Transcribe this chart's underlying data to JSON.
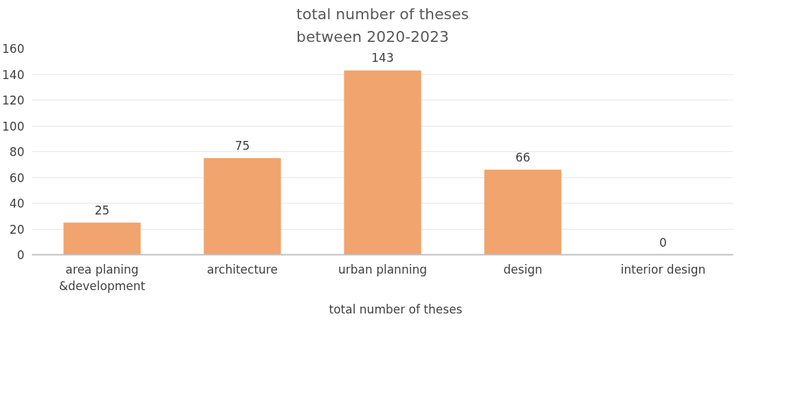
{
  "chart_data": {
    "type": "bar",
    "title": "total number of theses\nbetween 2020-2023",
    "categories": [
      "area planing &development",
      "architecture",
      "urban planning",
      "design",
      "interior design"
    ],
    "series": [
      {
        "name": "total number of theses",
        "color": "#f1a46d",
        "values": [
          25,
          75,
          143,
          66,
          0
        ]
      }
    ],
    "ylim": [
      0,
      160
    ],
    "yticks": [
      0,
      20,
      40,
      60,
      80,
      100,
      120,
      140,
      160
    ],
    "grid": "y",
    "legend": "bottom",
    "data_labels": true
  }
}
